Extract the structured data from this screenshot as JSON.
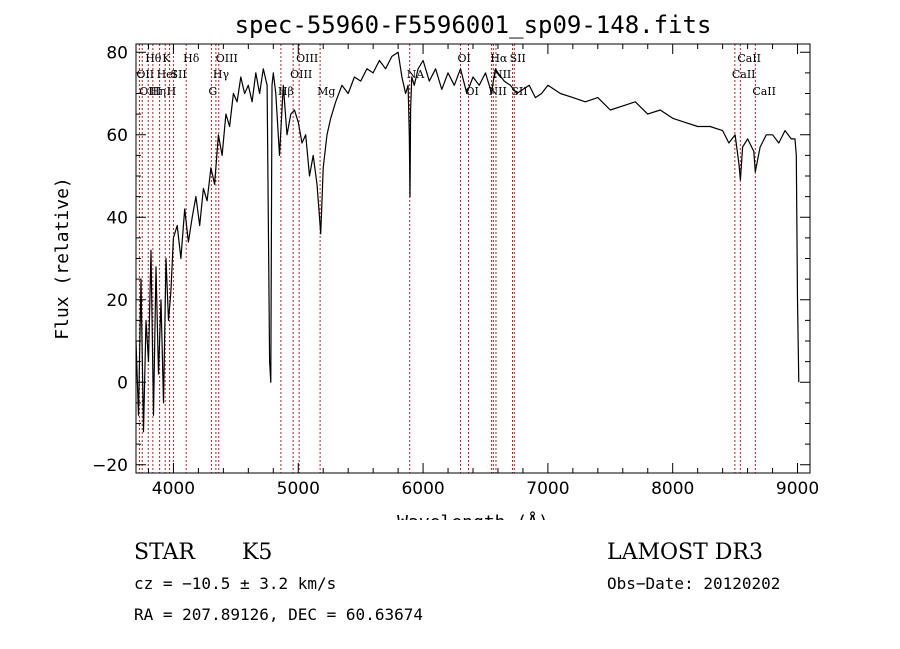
{
  "chart_data": {
    "type": "line",
    "title": "spec-55960-F5596001_sp09-148.fits",
    "xlabel": "Wavelength (Å)",
    "ylabel": "Flux (relative)",
    "xlim": [
      3700,
      9100
    ],
    "ylim": [
      -22,
      82
    ],
    "xticks": [
      4000,
      5000,
      6000,
      7000,
      8000,
      9000
    ],
    "xtick_labels": [
      "4000",
      "5000",
      "6000",
      "7000",
      "8000",
      "9000"
    ],
    "yticks": [
      -20,
      0,
      20,
      40,
      60,
      80
    ],
    "ytick_labels": [
      "−20",
      "0",
      "20",
      "40",
      "60",
      "80"
    ],
    "series": [
      {
        "name": "flux",
        "x": [
          3700,
          3720,
          3740,
          3760,
          3780,
          3800,
          3820,
          3840,
          3860,
          3880,
          3900,
          3920,
          3940,
          3960,
          3980,
          4000,
          4030,
          4060,
          4090,
          4120,
          4150,
          4180,
          4210,
          4240,
          4270,
          4300,
          4330,
          4360,
          4390,
          4420,
          4450,
          4480,
          4510,
          4540,
          4570,
          4600,
          4630,
          4660,
          4690,
          4720,
          4750,
          4760,
          4770,
          4780,
          4790,
          4800,
          4820,
          4850,
          4880,
          4910,
          4940,
          4970,
          5000,
          5030,
          5060,
          5090,
          5120,
          5150,
          5170,
          5180,
          5190,
          5200,
          5230,
          5260,
          5300,
          5350,
          5400,
          5450,
          5500,
          5550,
          5600,
          5650,
          5700,
          5750,
          5800,
          5830,
          5860,
          5880,
          5890,
          5895,
          5900,
          5910,
          5930,
          5960,
          6000,
          6050,
          6100,
          6150,
          6200,
          6250,
          6300,
          6350,
          6400,
          6450,
          6500,
          6550,
          6563,
          6580,
          6600,
          6650,
          6700,
          6750,
          6800,
          6850,
          6900,
          6950,
          7000,
          7100,
          7200,
          7300,
          7400,
          7500,
          7600,
          7700,
          7800,
          7900,
          8000,
          8100,
          8200,
          8300,
          8400,
          8450,
          8500,
          8530,
          8542,
          8560,
          8600,
          8650,
          8662,
          8700,
          8750,
          8800,
          8850,
          8900,
          8950,
          8980,
          8990,
          9000,
          9010
        ],
        "values": [
          10,
          -8,
          25,
          -12,
          15,
          5,
          32,
          -8,
          28,
          2,
          20,
          -5,
          30,
          15,
          22,
          35,
          38,
          30,
          42,
          34,
          40,
          45,
          38,
          47,
          44,
          52,
          48,
          60,
          55,
          65,
          62,
          70,
          68,
          74,
          70,
          72,
          68,
          75,
          70,
          76,
          72,
          40,
          5,
          0,
          72,
          75,
          70,
          55,
          72,
          60,
          65,
          66,
          63,
          58,
          60,
          50,
          55,
          48,
          40,
          36,
          44,
          52,
          60,
          64,
          68,
          72,
          70,
          74,
          73,
          76,
          75,
          78,
          76,
          79,
          80,
          74,
          70,
          72,
          60,
          45,
          66,
          74,
          72,
          76,
          78,
          73,
          76,
          71,
          75,
          72,
          76,
          70,
          74,
          72,
          75,
          70,
          73,
          76,
          75,
          73,
          72,
          70,
          71,
          72,
          69,
          70,
          72,
          70,
          69,
          68,
          69,
          66,
          67,
          68,
          65,
          66,
          64,
          63,
          62,
          62,
          61,
          58,
          60,
          53,
          49,
          57,
          59,
          56,
          51,
          57,
          60,
          60,
          58,
          61,
          59,
          59,
          55,
          20,
          0
        ]
      }
    ],
    "lines": [
      {
        "label": "Hθ",
        "wavelength": 3798,
        "row": 0
      },
      {
        "label": "OII",
        "wavelength": 3727,
        "row": 1
      },
      {
        "label": "OIII",
        "wavelength": 3750,
        "row": 2
      },
      {
        "label": "Hη",
        "wavelength": 3835,
        "row": 2
      },
      {
        "label": "HeI",
        "wavelength": 3889,
        "row": 1
      },
      {
        "label": "K",
        "wavelength": 3934,
        "row": 0
      },
      {
        "label": "SII",
        "wavelength": 4000,
        "row": 1
      },
      {
        "label": "H",
        "wavelength": 3969,
        "row": 2
      },
      {
        "label": "Hδ",
        "wavelength": 4102,
        "row": 0
      },
      {
        "label": "OIII",
        "wavelength": 4363,
        "row": 0
      },
      {
        "label": "Hγ",
        "wavelength": 4340,
        "row": 1
      },
      {
        "label": "G",
        "wavelength": 4304,
        "row": 2
      },
      {
        "label": "Hβ",
        "wavelength": 4861,
        "row": 2
      },
      {
        "label": "OIII",
        "wavelength": 4959,
        "row": 1
      },
      {
        "label": "OIII",
        "wavelength": 5007,
        "row": 0
      },
      {
        "label": "Mg",
        "wavelength": 5175,
        "row": 2
      },
      {
        "label": "NA",
        "wavelength": 5893,
        "row": 1
      },
      {
        "label": "OI",
        "wavelength": 6300,
        "row": 0
      },
      {
        "label": "OI",
        "wavelength": 6364,
        "row": 2
      },
      {
        "label": "Hα",
        "wavelength": 6563,
        "row": 0
      },
      {
        "label": "NII",
        "wavelength": 6548,
        "row": 2
      },
      {
        "label": "NII",
        "wavelength": 6584,
        "row": 1
      },
      {
        "label": "SII",
        "wavelength": 6717,
        "row": 0
      },
      {
        "label": "SII",
        "wavelength": 6731,
        "row": 2
      },
      {
        "label": "CaII",
        "wavelength": 8542,
        "row": 0
      },
      {
        "label": "CaII",
        "wavelength": 8498,
        "row": 1
      },
      {
        "label": "CaII",
        "wavelength": 8662,
        "row": 2
      }
    ],
    "line_color": "#b22222"
  },
  "info": {
    "class": "STAR",
    "subclass": "K5",
    "survey": "LAMOST DR3",
    "cz": "cz = −10.5 ± 3.2 km/s",
    "obs_date": "Obs−Date: 20120202",
    "coords": "RA = 207.89126, DEC =  60.63674"
  }
}
